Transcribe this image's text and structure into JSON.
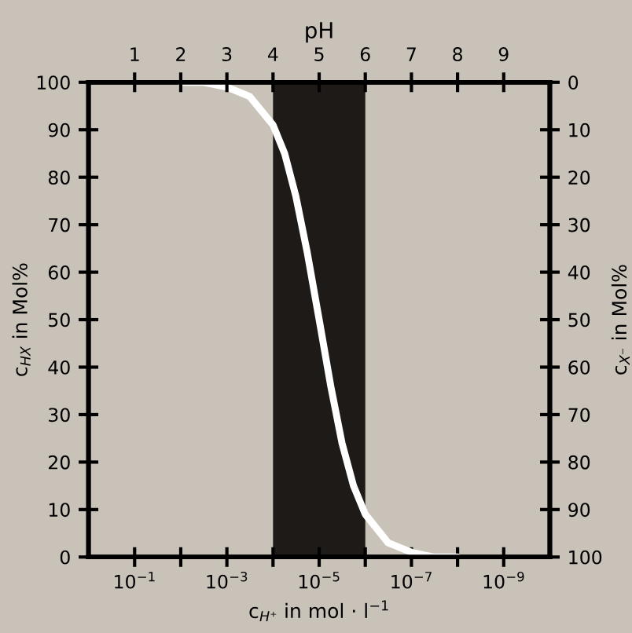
{
  "chart_data": {
    "type": "line",
    "x2label": "pH",
    "xlabel": "c$_{H⁺}$ in mol · l$^{−1}$",
    "ylabel": "c$_{HX}$ in Mol%",
    "y2label": "c$_{X⁻}$ in Mol%",
    "log": "x",
    "xlim": [
      1,
      1e-10
    ],
    "xticks": [
      {
        "value": 0.1,
        "label": "10$^{−1}$"
      },
      {
        "value": 0.01,
        "label": null
      },
      {
        "value": 0.001,
        "label": "10$^{−3}$"
      },
      {
        "value": 0.0001,
        "label": null
      },
      {
        "value": 1e-05,
        "label": "10$^{−5}$"
      },
      {
        "value": 1e-06,
        "label": null
      },
      {
        "value": 1e-07,
        "label": "10$^{−7}$"
      },
      {
        "value": 1e-08,
        "label": null
      },
      {
        "value": 1e-09,
        "label": "10$^{−9}$"
      }
    ],
    "x2lim": [
      0,
      10
    ],
    "x2ticks": [
      1,
      2,
      3,
      4,
      5,
      6,
      7,
      8,
      9
    ],
    "ylim": [
      0,
      100
    ],
    "yticks": [
      0,
      10,
      20,
      30,
      40,
      50,
      60,
      70,
      80,
      90,
      100
    ],
    "y2lim": [
      100,
      0
    ],
    "y2ticks": [
      0,
      10,
      20,
      30,
      40,
      50,
      60,
      70,
      80,
      90,
      100
    ],
    "grid": false,
    "marker": "none",
    "line_style": "solid",
    "bands": [
      {
        "axis": "x",
        "from": 0.0001,
        "to": 1e-06,
        "label": null,
        "color": "#1e1a18"
      }
    ],
    "series": [
      {
        "color": "#ffffff",
        "x": [
          0.01,
          0.0032,
          0.001,
          0.00032,
          0.0001,
          5.6e-05,
          3.2e-05,
          1.8e-05,
          1e-05,
          5.6e-06,
          3.2e-06,
          1.8e-06,
          1e-06,
          3.2e-07,
          1e-07,
          3.2e-08,
          1e-08
        ],
        "values": [
          100,
          100,
          99,
          97,
          91,
          85,
          76,
          64,
          50,
          36,
          24,
          15,
          9,
          3,
          1,
          0,
          0
        ]
      }
    ]
  }
}
